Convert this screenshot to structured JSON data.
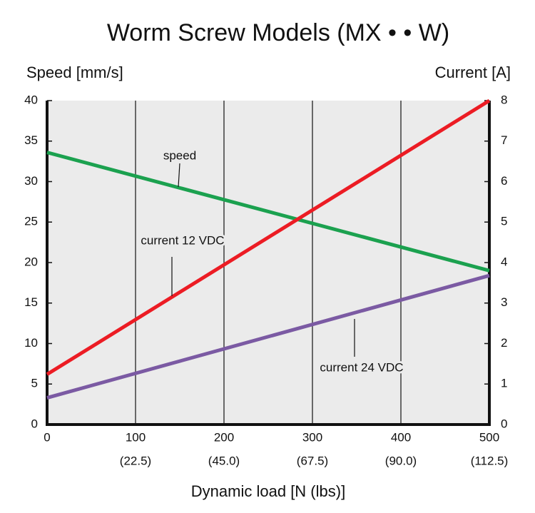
{
  "chart_data": {
    "type": "line",
    "title": "Worm Screw Models (MX • • W)",
    "y_label": "Speed [mm/s]",
    "y2_label": "Current [A]",
    "x_label": "Dynamic load [N (lbs)]",
    "x": [
      0,
      500
    ],
    "xlim": [
      0,
      500
    ],
    "xticks": [
      0,
      100,
      200,
      300,
      400,
      500
    ],
    "xticks_lbs": [
      null,
      "(22.5)",
      "(45.0)",
      "(67.5)",
      "(90.0)",
      "(112.5)"
    ],
    "ylim": [
      0,
      40
    ],
    "yticks": [
      0,
      5,
      10,
      15,
      20,
      25,
      30,
      35,
      40
    ],
    "y2lim": [
      0,
      8
    ],
    "y2ticks": [
      0,
      1,
      2,
      3,
      4,
      5,
      6,
      7,
      8
    ],
    "grid": true,
    "series": [
      {
        "name": "speed",
        "color": "#1ba14f",
        "values": [
          33.6,
          19.0
        ]
      },
      {
        "name": "current 12 VDC",
        "color": "#ec1c24",
        "axis": "y2",
        "values": [
          1.24,
          8.0
        ]
      },
      {
        "name": "current 24 VDC",
        "color": "#7b5aa3",
        "axis": "y2",
        "values": [
          0.66,
          3.68
        ]
      }
    ]
  }
}
